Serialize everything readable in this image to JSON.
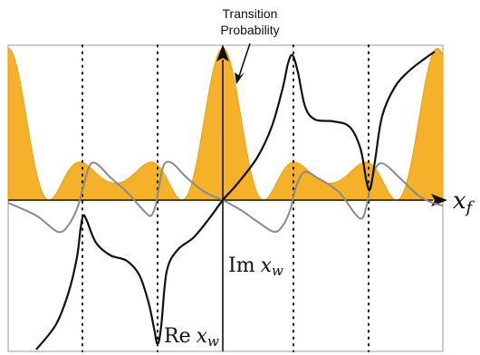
{
  "annotation": {
    "line1": "Transition",
    "line2": "Probability"
  },
  "labels": {
    "x_axis_var": "x",
    "x_axis_sub": "f",
    "im_prefix": "Im",
    "im_var": "x",
    "im_sub": "w",
    "re_prefix": "Re",
    "re_var": "x",
    "re_sub": "w"
  },
  "colors": {
    "probability_fill": "#f6b12a",
    "probability_stroke": "#eea512",
    "re_curve": "#111111",
    "im_curve": "#8a8a8a",
    "axes": "#111111",
    "dotted": "#111111",
    "frame": "#9a9a9a"
  },
  "icons": {
    "x_axis_arrowhead": "arrow-right-icon",
    "y_axis_arrowhead": "arrow-up-icon",
    "annotation_arrow": "curved-arrow-icon"
  }
}
